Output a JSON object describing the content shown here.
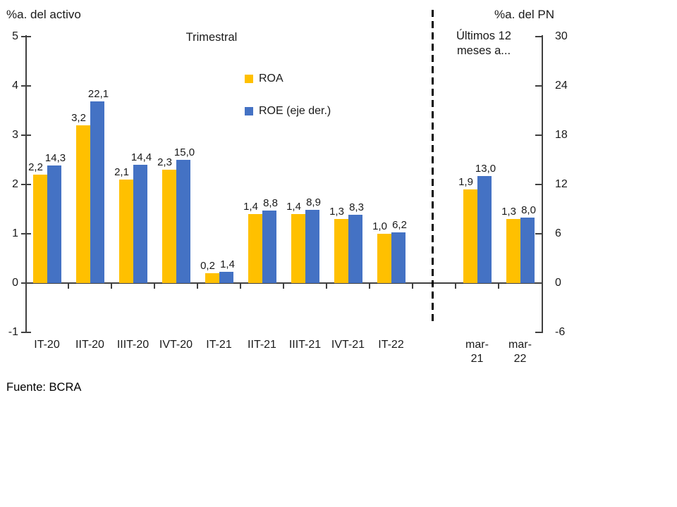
{
  "header": {
    "left_axis_title": "%a. del activo",
    "right_axis_title": "%a. del PN"
  },
  "sections": {
    "quarterly_title": "Trimestral",
    "last12_title": "Últimos 12\nmeses a..."
  },
  "legend": [
    {
      "name": "roa",
      "label": "ROA",
      "color": "#FFC000"
    },
    {
      "name": "roe",
      "label": "ROE (eje der.)",
      "color": "#4472C4"
    }
  ],
  "footer": {
    "source": "Fuente: BCRA"
  },
  "chart_data": {
    "type": "bar",
    "title": "",
    "sections": [
      {
        "title": "Trimestral",
        "category_count": 9
      },
      {
        "title": "Últimos 12 meses a...",
        "category_count": 2
      }
    ],
    "categories": [
      "IT-20",
      "IIT-20",
      "IIIT-20",
      "IVT-20",
      "IT-21",
      "IIT-21",
      "IIIT-21",
      "IVT-21",
      "IT-22",
      "mar-21",
      "mar-22"
    ],
    "x_tick_display": [
      "IT-20",
      "IIT-20",
      "IIIT-20",
      "IVT-20",
      "IT-21",
      "IIT-21",
      "IIIT-21",
      "IVT-21",
      "IT-22",
      "mar-\n21",
      "mar-\n22"
    ],
    "series": [
      {
        "name": "ROA",
        "axis": "left",
        "color": "#FFC000",
        "values": [
          2.2,
          3.2,
          2.1,
          2.3,
          0.2,
          1.4,
          1.4,
          1.3,
          1.0,
          1.9,
          1.3
        ],
        "labels": [
          "2,2",
          "3,2",
          "2,1",
          "2,3",
          "0,2",
          "1,4",
          "1,4",
          "1,3",
          "1,0",
          "1,9",
          "1,3"
        ]
      },
      {
        "name": "ROE (eje der.)",
        "axis": "right",
        "color": "#4472C4",
        "values": [
          14.3,
          22.1,
          14.4,
          15.0,
          1.4,
          8.8,
          8.9,
          8.3,
          6.2,
          13.0,
          8.0
        ],
        "labels": [
          "14,3",
          "22,1",
          "14,4",
          "15,0",
          "1,4",
          "8,8",
          "8,9",
          "8,3",
          "6,2",
          "13,0",
          "8,0"
        ]
      }
    ],
    "left_axis": {
      "title": "%a. del activo",
      "min": -1,
      "max": 5,
      "ticks": [
        5,
        4,
        3,
        2,
        1,
        0,
        -1
      ]
    },
    "right_axis": {
      "title": "%a. del PN",
      "min": -6,
      "max": 30,
      "ticks": [
        30,
        24,
        18,
        12,
        6,
        0,
        -6
      ]
    },
    "legend_position": "top-center",
    "grid": false,
    "separator": "dashed vertical line between quarterly and last-12-months sections",
    "source": "Fuente: BCRA"
  }
}
